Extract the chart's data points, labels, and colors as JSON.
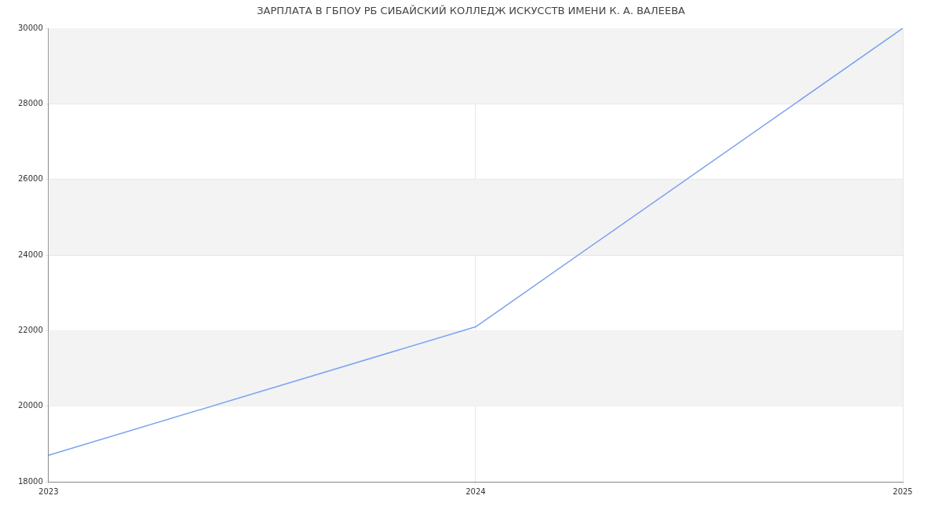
{
  "chart_data": {
    "type": "line",
    "title": "ЗАРПЛАТА В ГБПОУ РБ СИБАЙСКИЙ КОЛЛЕДЖ ИСКУССТВ ИМЕНИ К. А. ВАЛЕЕВА",
    "x": [
      2023,
      2024,
      2025
    ],
    "series": [
      {
        "color": "#7aa3f0",
        "values": [
          18700,
          22100,
          30000
        ]
      }
    ],
    "xlim": [
      2023,
      2025
    ],
    "xticks": [
      2023,
      2024,
      2025
    ],
    "ylim": [
      18000,
      30000
    ],
    "yticks": [
      18000,
      20000,
      22000,
      24000,
      26000,
      28000,
      30000
    ],
    "bands": [
      {
        "axis": "y",
        "from": 20000,
        "to": 22000,
        "color": "#f3f3f3"
      },
      {
        "axis": "y",
        "from": 24000,
        "to": 26000,
        "color": "#f3f3f3"
      },
      {
        "axis": "y",
        "from": 28000,
        "to": 30000,
        "color": "#f3f3f3"
      }
    ],
    "grid": true,
    "legend": false,
    "marker": "none",
    "line_style": "solid"
  }
}
